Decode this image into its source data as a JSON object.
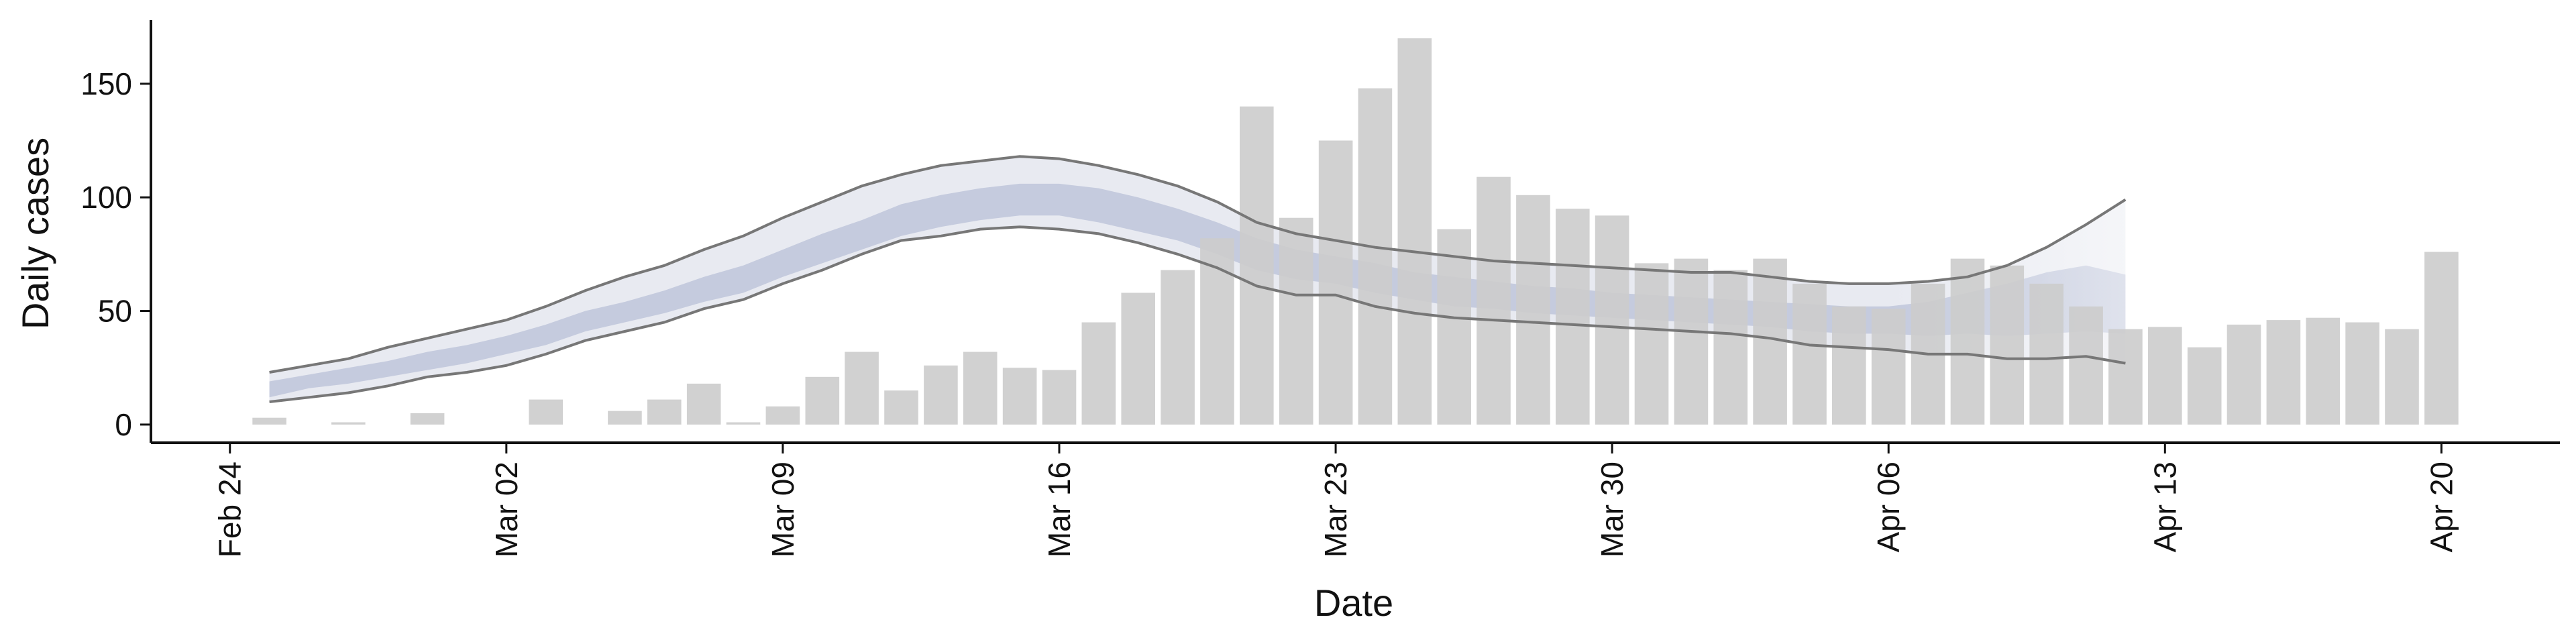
{
  "chart_data": {
    "type": "bar",
    "title": "",
    "xlabel": "Date",
    "ylabel": "Daily cases",
    "ylim": [
      -8,
      178
    ],
    "yticks": [
      0,
      50,
      100,
      150
    ],
    "x_range": [
      "2020-02-22",
      "2020-04-23"
    ],
    "xticks": [
      {
        "date": "2020-02-24",
        "label": "Feb 24"
      },
      {
        "date": "2020-03-02",
        "label": "Mar 02"
      },
      {
        "date": "2020-03-09",
        "label": "Mar 09"
      },
      {
        "date": "2020-03-16",
        "label": "Mar 16"
      },
      {
        "date": "2020-03-23",
        "label": "Mar 23"
      },
      {
        "date": "2020-03-30",
        "label": "Mar 30"
      },
      {
        "date": "2020-04-06",
        "label": "Apr 06"
      },
      {
        "date": "2020-04-13",
        "label": "Apr 13"
      },
      {
        "date": "2020-04-20",
        "label": "Apr 20"
      }
    ],
    "bars": {
      "color": "#cccccc",
      "dates": [
        "2020-02-25",
        "2020-02-26",
        "2020-02-27",
        "2020-02-28",
        "2020-02-29",
        "2020-03-01",
        "2020-03-02",
        "2020-03-03",
        "2020-03-04",
        "2020-03-05",
        "2020-03-06",
        "2020-03-07",
        "2020-03-08",
        "2020-03-09",
        "2020-03-10",
        "2020-03-11",
        "2020-03-12",
        "2020-03-13",
        "2020-03-14",
        "2020-03-15",
        "2020-03-16",
        "2020-03-17",
        "2020-03-18",
        "2020-03-19",
        "2020-03-20",
        "2020-03-21",
        "2020-03-22",
        "2020-03-23",
        "2020-03-24",
        "2020-03-25",
        "2020-03-26",
        "2020-03-27",
        "2020-03-28",
        "2020-03-29",
        "2020-03-30",
        "2020-03-31",
        "2020-04-01",
        "2020-04-02",
        "2020-04-03",
        "2020-04-04",
        "2020-04-05",
        "2020-04-06",
        "2020-04-07",
        "2020-04-08",
        "2020-04-09",
        "2020-04-10",
        "2020-04-11",
        "2020-04-12",
        "2020-04-13",
        "2020-04-14",
        "2020-04-15",
        "2020-04-16",
        "2020-04-17",
        "2020-04-18",
        "2020-04-19",
        "2020-04-20",
        "2020-04-21"
      ],
      "values": [
        3,
        0,
        1,
        0,
        5,
        0,
        0,
        11,
        0,
        6,
        11,
        18,
        1,
        8,
        21,
        32,
        15,
        26,
        32,
        25,
        24,
        45,
        58,
        68,
        82,
        140,
        91,
        125,
        148,
        170,
        86,
        109,
        101,
        95,
        92,
        71,
        73,
        68,
        73,
        62,
        52,
        51,
        62,
        73,
        70,
        62,
        52,
        42,
        43,
        34,
        44,
        46,
        47,
        45,
        42,
        76,
        0
      ]
    },
    "estimate": {
      "dates": [
        "2020-02-25",
        "2020-02-26",
        "2020-02-27",
        "2020-02-28",
        "2020-02-29",
        "2020-03-01",
        "2020-03-02",
        "2020-03-03",
        "2020-03-04",
        "2020-03-05",
        "2020-03-06",
        "2020-03-07",
        "2020-03-08",
        "2020-03-09",
        "2020-03-10",
        "2020-03-11",
        "2020-03-12",
        "2020-03-13",
        "2020-03-14",
        "2020-03-15",
        "2020-03-16",
        "2020-03-17",
        "2020-03-18",
        "2020-03-19",
        "2020-03-20",
        "2020-03-21",
        "2020-03-22",
        "2020-03-23",
        "2020-03-24",
        "2020-03-25",
        "2020-03-26",
        "2020-03-27",
        "2020-03-28",
        "2020-03-29",
        "2020-03-30",
        "2020-03-31",
        "2020-04-01",
        "2020-04-02",
        "2020-04-03",
        "2020-04-04",
        "2020-04-05",
        "2020-04-06",
        "2020-04-07",
        "2020-04-08",
        "2020-04-09",
        "2020-04-10",
        "2020-04-11",
        "2020-04-12"
      ],
      "ci90_upper": [
        23,
        26,
        29,
        34,
        38,
        42,
        46,
        52,
        59,
        65,
        70,
        77,
        83,
        91,
        98,
        105,
        110,
        114,
        116,
        118,
        117,
        114,
        110,
        105,
        98,
        89,
        84,
        81,
        78,
        76,
        74,
        72,
        71,
        70,
        69,
        68,
        67,
        67,
        65,
        63,
        62,
        62,
        63,
        65,
        70,
        78,
        88,
        99
      ],
      "ci90_lower": [
        10,
        12,
        14,
        17,
        21,
        23,
        26,
        31,
        37,
        41,
        45,
        51,
        55,
        62,
        68,
        75,
        81,
        83,
        86,
        87,
        86,
        84,
        80,
        75,
        69,
        61,
        57,
        57,
        52,
        49,
        47,
        46,
        45,
        44,
        43,
        42,
        41,
        40,
        38,
        35,
        34,
        33,
        31,
        31,
        29,
        29,
        30,
        27
      ],
      "ci50_upper": [
        19,
        22,
        25,
        28,
        32,
        35,
        39,
        44,
        50,
        54,
        59,
        65,
        70,
        77,
        84,
        90,
        97,
        101,
        104,
        106,
        106,
        104,
        100,
        95,
        89,
        82,
        77,
        74,
        71,
        67,
        65,
        63,
        61,
        60,
        58,
        57,
        56,
        55,
        54,
        53,
        52,
        52,
        54,
        58,
        62,
        67,
        70,
        66
      ],
      "ci50_lower": [
        12,
        16,
        18,
        21,
        24,
        27,
        31,
        35,
        41,
        45,
        49,
        54,
        58,
        65,
        71,
        77,
        83,
        87,
        90,
        92,
        92,
        89,
        85,
        81,
        75,
        68,
        64,
        62,
        58,
        55,
        52,
        51,
        49,
        48,
        47,
        46,
        45,
        44,
        43,
        41,
        40,
        40,
        39,
        40,
        39,
        40,
        41,
        40
      ],
      "projection_start": "2020-04-06",
      "outer_band_color": "#e8eaf1",
      "inner_band_color": "#c5cbde",
      "line_color": "#777777"
    }
  }
}
